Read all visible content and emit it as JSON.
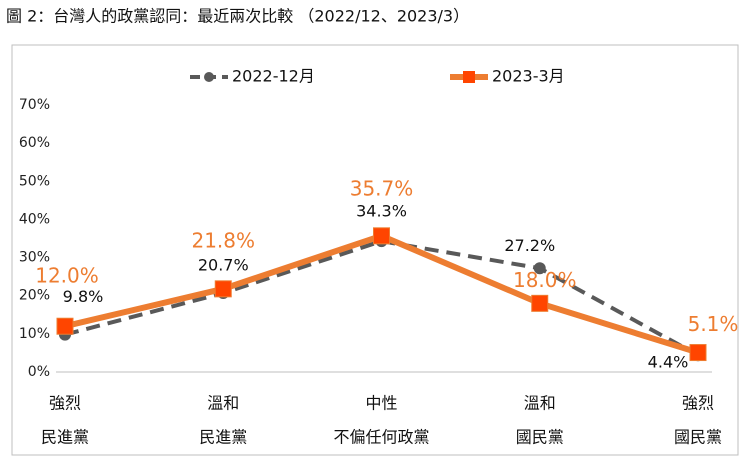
{
  "chart_data": {
    "type": "line",
    "title": "圖 2：台灣人的政黨認同：最近兩次比較 （2022/12、2023/3）",
    "categories": [
      [
        "強烈",
        "民進黨"
      ],
      [
        "溫和",
        "民進黨"
      ],
      [
        "中性",
        "不偏任何政黨"
      ],
      [
        "溫和",
        "國民黨"
      ],
      [
        "強烈",
        "國民黨"
      ]
    ],
    "series": [
      {
        "name": "2022-12月",
        "color": "#595959",
        "values": [
          9.8,
          20.7,
          34.3,
          27.2,
          4.4
        ],
        "value_labels": [
          "9.8%",
          "20.7%",
          "34.3%",
          "27.2%",
          "4.4%"
        ]
      },
      {
        "name": "2023-3月",
        "color": "#ed7d31",
        "values": [
          12.0,
          21.8,
          35.7,
          18.0,
          5.1
        ],
        "value_labels": [
          "12.0%",
          "21.8%",
          "35.7%",
          "18.0%",
          "5.1%"
        ]
      }
    ],
    "ylim": [
      0,
      70
    ],
    "yticks": [
      {
        "value": 0,
        "label": "0%"
      },
      {
        "value": 10,
        "label": "10%"
      },
      {
        "value": 20,
        "label": "20%"
      },
      {
        "value": 30,
        "label": "30%"
      },
      {
        "value": 40,
        "label": "40%"
      },
      {
        "value": 50,
        "label": "50%"
      },
      {
        "value": 60,
        "label": "60%"
      },
      {
        "value": 70,
        "label": "70%"
      }
    ],
    "grid": false
  }
}
